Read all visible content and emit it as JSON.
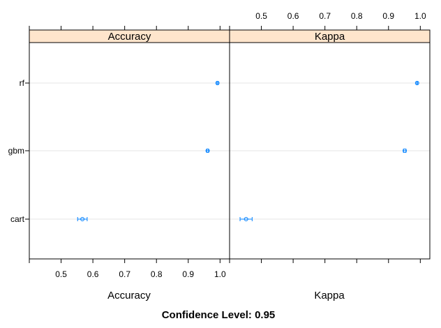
{
  "chart_data": {
    "type": "dotplot",
    "caption": "Confidence Level: 0.95",
    "categories": [
      "cart",
      "gbm",
      "rf"
    ],
    "xlim": [
      0.4,
      1.03
    ],
    "ticks": [
      0.5,
      0.6,
      0.7,
      0.8,
      0.9,
      1.0
    ],
    "tick_labels": [
      "0.5",
      "0.6",
      "0.7",
      "0.8",
      "0.9",
      "1.0"
    ],
    "grid": true,
    "colors": {
      "point": "#0080ff",
      "strip": "#ffe5cc",
      "grid": "#e6e6e6"
    },
    "panels": [
      {
        "strip": "Accuracy",
        "xlabel": "Accuracy",
        "tick_side": "bottom",
        "points": [
          {
            "category": "cart",
            "estimate": 0.567,
            "lower": 0.552,
            "upper": 0.582
          },
          {
            "category": "gbm",
            "estimate": 0.961,
            "lower": 0.958,
            "upper": 0.964
          },
          {
            "category": "rf",
            "estimate": 0.992,
            "lower": 0.99,
            "upper": 0.994
          }
        ]
      },
      {
        "strip": "Kappa",
        "xlabel": "Kappa",
        "tick_side": "top",
        "points": [
          {
            "category": "cart",
            "estimate": 0.452,
            "lower": 0.433,
            "upper": 0.471
          },
          {
            "category": "gbm",
            "estimate": 0.951,
            "lower": 0.947,
            "upper": 0.955
          },
          {
            "category": "rf",
            "estimate": 0.99,
            "lower": 0.988,
            "upper": 0.992
          }
        ]
      }
    ]
  }
}
